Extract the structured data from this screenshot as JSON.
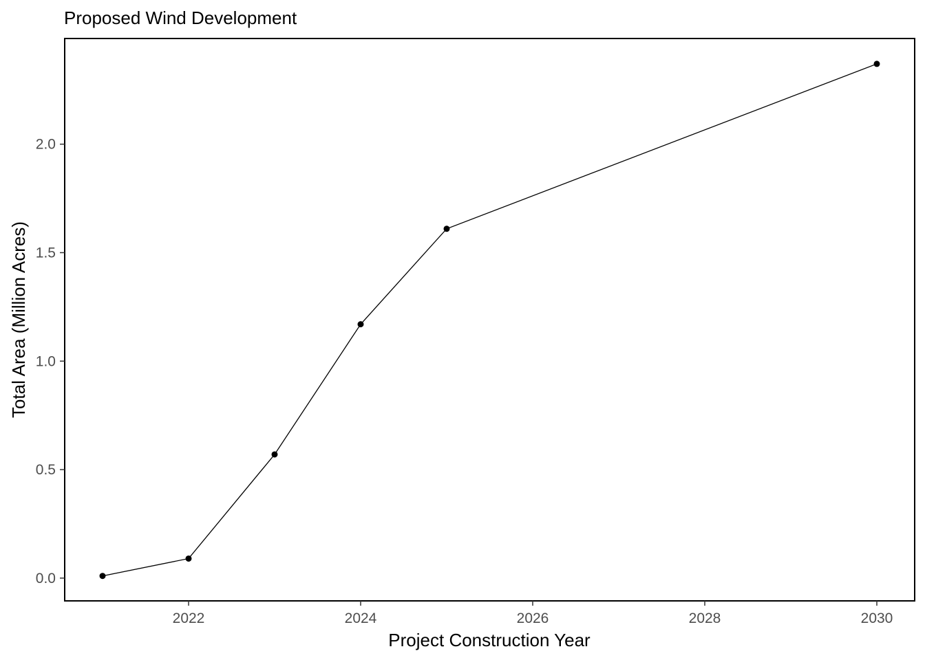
{
  "chart_data": {
    "type": "line",
    "title": "Proposed Wind Development",
    "xlabel": "Project Construction Year",
    "ylabel": "Total Area (Million Acres)",
    "x": [
      2021,
      2022,
      2023,
      2024,
      2025,
      2030
    ],
    "series": [
      {
        "values": [
          0.01,
          0.09,
          0.57,
          1.17,
          1.61,
          2.37
        ]
      }
    ],
    "xlim": [
      2020.56,
      2030.44
    ],
    "ylim": [
      -0.105,
      2.487
    ],
    "xticks": [
      2022,
      2024,
      2026,
      2028,
      2030
    ],
    "xtick_labels": [
      "2022",
      "2024",
      "2026",
      "2028",
      "2030"
    ],
    "yticks": [
      0.0,
      0.5,
      1.0,
      1.5,
      2.0
    ],
    "ytick_labels": [
      "0.0",
      "0.5",
      "1.0",
      "1.5",
      "2.0"
    ],
    "grid": false,
    "legend": "none",
    "colors": {
      "line": "#000000",
      "point": "#000000",
      "panel_border": "#000000",
      "tick_text": "#4d4d4d"
    }
  }
}
